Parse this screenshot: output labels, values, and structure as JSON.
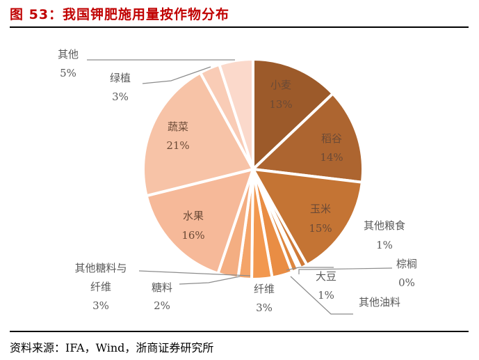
{
  "header": {
    "title": "图 53：我国钾肥施用量按作物分布"
  },
  "footer": {
    "source": "资料来源：IFA，Wind，浙商证券研究所"
  },
  "chart_data": {
    "type": "pie",
    "title": "图 53：我国钾肥施用量按作物分布",
    "start_angle": "12 o'clock, clockwise",
    "slices": [
      {
        "label": "小麦",
        "value": 13,
        "display": "13%",
        "color": "#9c5a2a"
      },
      {
        "label": "稻谷",
        "value": 14,
        "display": "14%",
        "color": "#ad6530"
      },
      {
        "label": "玉米",
        "value": 15,
        "display": "15%",
        "color": "#c47434"
      },
      {
        "label": "其他粮食",
        "value": 1,
        "display": "1%",
        "color": "#cf7a38"
      },
      {
        "label": "棕榈",
        "value": 0.4,
        "display": "0%",
        "color": "#d6803b"
      },
      {
        "label": "大豆",
        "value": 1,
        "display": "1%",
        "color": "#de863e"
      },
      {
        "label": "其他油料",
        "value": 3,
        "display": "",
        "color": "#e98d44"
      },
      {
        "label": "纤维",
        "value": 3,
        "display": "3%",
        "color": "#f2984f"
      },
      {
        "label": "糖料",
        "value": 2,
        "display": "2%",
        "color": "#f4a469"
      },
      {
        "label": "其他糖料与纤维",
        "value": 3,
        "display": "3%",
        "color": "#f4ae82"
      },
      {
        "label": "水果",
        "value": 16,
        "display": "16%",
        "color": "#f6b999"
      },
      {
        "label": "蔬菜",
        "value": 21,
        "display": "21%",
        "color": "#f7c3a7"
      },
      {
        "label": "绿植",
        "value": 3,
        "display": "3%",
        "color": "#f9ccb6"
      },
      {
        "label": "其他",
        "value": 5,
        "display": "5%",
        "color": "#fbd9cb"
      }
    ]
  }
}
